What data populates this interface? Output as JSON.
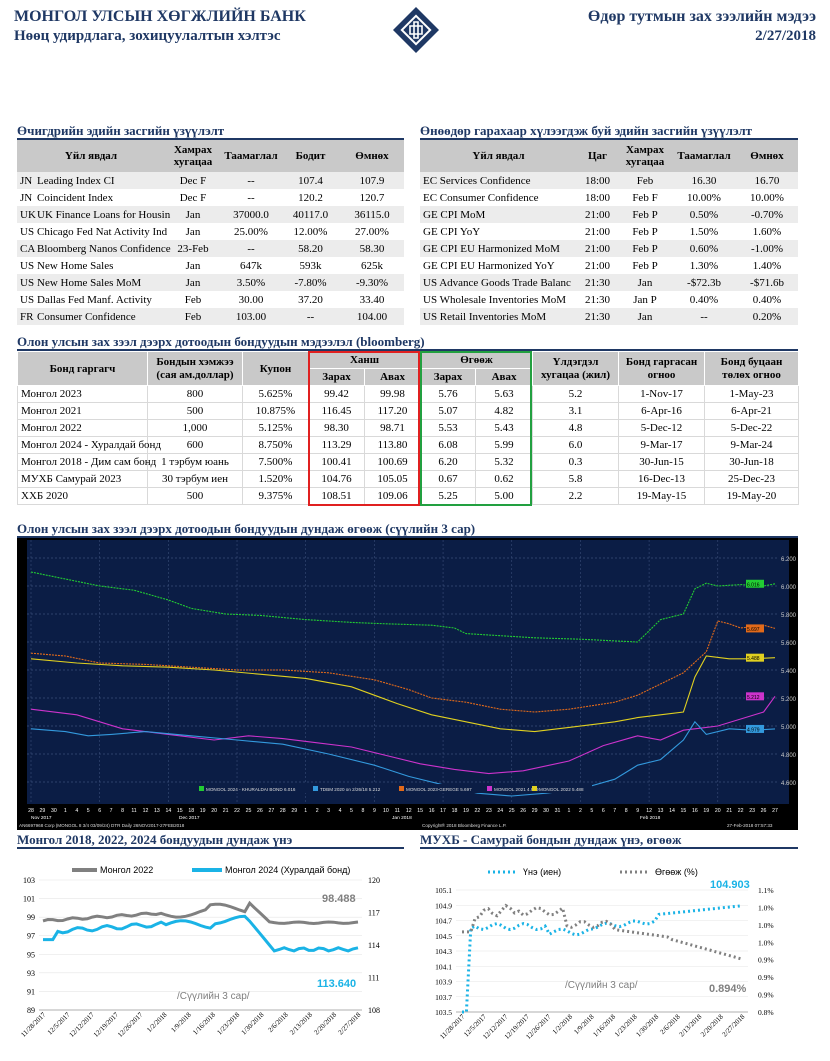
{
  "header": {
    "bank": "МОНГОЛ УЛСЫН ХӨГЖЛИЙН БАНК",
    "dept": "Нөөц удирдлага, зохицуулалтын хэлтэс",
    "report": "Өдөр тутмын зах зээлийн мэдээ",
    "date": "2/27/2018"
  },
  "yesterday": {
    "title": "Өчигдрийн эдийн засгийн үзүүлэлт",
    "cols": [
      "Үйл явдал",
      "Хамрах хугацаа",
      "Таамаглал",
      "Бодит",
      "Өмнөх"
    ],
    "rows": [
      [
        "JN",
        "Leading Index CI",
        "Dec F",
        "--",
        "107.4",
        "107.9"
      ],
      [
        "JN",
        "Coincident Index",
        "Dec F",
        "--",
        "120.2",
        "120.7"
      ],
      [
        "UK",
        "UK Finance Loans for Housin",
        "Jan",
        "37000.0",
        "40117.0",
        "36115.0"
      ],
      [
        "US",
        "Chicago Fed Nat Activity Ind",
        "Jan",
        "25.00%",
        "12.00%",
        "27.00%"
      ],
      [
        "CA",
        "Bloomberg Nanos Confidence",
        "23-Feb",
        "--",
        "58.20",
        "58.30"
      ],
      [
        "US",
        "New Home Sales",
        "Jan",
        "647k",
        "593k",
        "625k"
      ],
      [
        "US",
        "New Home Sales MoM",
        "Jan",
        "3.50%",
        "-7.80%",
        "-9.30%"
      ],
      [
        "US",
        "Dallas Fed Manf. Activity",
        "Feb",
        "30.00",
        "37.20",
        "33.40"
      ],
      [
        "FR",
        "Consumer Confidence",
        "Feb",
        "103.00",
        "--",
        "104.00"
      ]
    ]
  },
  "today": {
    "title": "Өнөөдөр гарахаар хүлээгдэж буй эдийн засгийн үзүүлэлт",
    "cols": [
      "Үйл явдал",
      "Цаг",
      "Хамрах хугацаа",
      "Таамаглал",
      "Өмнөх"
    ],
    "rows": [
      [
        "EC Services Confidence",
        "18:00",
        "Feb",
        "16.30",
        "16.70"
      ],
      [
        "EC Consumer Confidence",
        "18:00",
        "Feb F",
        "10.00%",
        "10.00%"
      ],
      [
        "GE CPI MoM",
        "21:00",
        "Feb P",
        "0.50%",
        "-0.70%"
      ],
      [
        "GE CPI YoY",
        "21:00",
        "Feb P",
        "1.50%",
        "1.60%"
      ],
      [
        "GE CPI EU Harmonized MoM",
        "21:00",
        "Feb P",
        "0.60%",
        "-1.00%"
      ],
      [
        "GE CPI EU Harmonized YoY",
        "21:00",
        "Feb P",
        "1.30%",
        "1.40%"
      ],
      [
        "US Advance Goods Trade Balanc",
        "21:30",
        "Jan",
        "-$72.3b",
        "-$71.6b"
      ],
      [
        "US Wholesale Inventories MoM",
        "21:30",
        "Jan P",
        "0.40%",
        "0.40%"
      ],
      [
        "US Retail Inventories MoM",
        "21:30",
        "Jan",
        "--",
        "0.20%"
      ]
    ]
  },
  "bonds": {
    "title": "Олон улсын зах зээл дээрх дотоодын бондуудын мэдээлэл (bloomberg)",
    "cols": [
      "Бонд гаргагч",
      "Бондын хэмжээ (сая ам.доллар)",
      "Купон",
      "Ханш",
      "Өгөөж",
      "Үлдэгдэл хугацаа (жил)",
      "Бонд гаргасан огноо",
      "Бонд буцаан төлөх огноо"
    ],
    "sub": [
      "Зарах",
      "Авах",
      "Зарах",
      "Авах"
    ],
    "rows": [
      [
        "Монгол 2023",
        "800",
        "5.625%",
        "99.42",
        "99.98",
        "5.76",
        "5.63",
        "5.2",
        "1-Nov-17",
        "1-May-23"
      ],
      [
        "Монгол 2021",
        "500",
        "10.875%",
        "116.45",
        "117.20",
        "5.07",
        "4.82",
        "3.1",
        "6-Apr-16",
        "6-Apr-21"
      ],
      [
        "Монгол 2022",
        "1,000",
        "5.125%",
        "98.30",
        "98.71",
        "5.53",
        "5.43",
        "4.8",
        "5-Dec-12",
        "5-Dec-22"
      ],
      [
        "Монгол 2024 - Хуралдай бонд",
        "600",
        "8.750%",
        "113.29",
        "113.80",
        "6.08",
        "5.99",
        "6.0",
        "9-Mar-17",
        "9-Mar-24"
      ],
      [
        "Монгол 2018 - Дим сам бонд",
        "1 тэрбум юань",
        "7.500%",
        "100.41",
        "100.69",
        "6.20",
        "5.32",
        "0.3",
        "30-Jun-15",
        "30-Jun-18"
      ],
      [
        "МУХБ Самурай 2023",
        "30 тэрбум иен",
        "1.520%",
        "104.76",
        "105.05",
        "0.67",
        "0.62",
        "5.8",
        "16-Dec-13",
        "25-Dec-23"
      ],
      [
        "ХХБ 2020",
        "500",
        "9.375%",
        "108.51",
        "109.06",
        "5.25",
        "5.00",
        "2.2",
        "19-May-15",
        "19-May-20"
      ]
    ]
  },
  "chart1": {
    "title": "Олон улсын зах зээл дээрх дотоодын бондуудын дундаж өгөөж (сүүлийн 3 сар)",
    "legend": [
      "MONGOL 2024 - KHURALDAI BOND 6.016",
      "TDBM 2020 on 2/26/18 5.212",
      "MONGOL 2023-GEREGE 5.697",
      "MONGOL 2021 4.979",
      "MONGOL 2022 5.488"
    ],
    "ylabels": [
      "6.200",
      "6.000",
      "5.800",
      "5.600",
      "5.400",
      "5.200",
      "5.000",
      "4.800",
      "4.600"
    ],
    "tags": [
      "6.016",
      "5.697",
      "5.488",
      "5.212",
      "4.979"
    ],
    "footer_left": "AN6697968 Corp (MONGOL 8 3/4 03/09/24) DTR  Daily 26NOV2017-27FEB2018",
    "footer_mid": "Copyright® 2018 Bloomberg Finance L.P.",
    "footer_right": "27-Feb-2018 07:57:33",
    "xlabels": [
      "28",
      "29",
      "30",
      "1",
      "4",
      "5",
      "6",
      "7",
      "8",
      "11",
      "12",
      "13",
      "14",
      "15",
      "18",
      "19",
      "20",
      "21",
      "22",
      "25",
      "26",
      "27",
      "28",
      "29",
      "1",
      "2",
      "3",
      "4",
      "5",
      "8",
      "9",
      "10",
      "11",
      "12",
      "15",
      "16",
      "17",
      "18",
      "19",
      "22",
      "23",
      "24",
      "25",
      "26",
      "29",
      "30",
      "31",
      "1",
      "2",
      "5",
      "6",
      "7",
      "8",
      "9",
      "12",
      "13",
      "14",
      "15",
      "16",
      "19",
      "20",
      "21",
      "22",
      "23",
      "26",
      "27"
    ],
    "month_labels": [
      "Nov 2017",
      "Dec 2017",
      "Jan 2018",
      "Feb 2018"
    ],
    "colors": [
      "#22cc33",
      "#e26a1a",
      "#e0d020",
      "#cc33cc",
      "#3399dd"
    ]
  },
  "chart2": {
    "title": "Монгол 2018, 2022, 2024 бондуудын дундаж үнэ",
    "legend": [
      "Монгол 2022",
      "Монгол 2024 (Хуралдай бонд)"
    ],
    "left_axis": [
      "103",
      "101",
      "99",
      "97",
      "95",
      "93",
      "91",
      "89"
    ],
    "right_axis": [
      "120",
      "117",
      "114",
      "111",
      "108"
    ],
    "label_a": "98.488",
    "label_b": "113.640",
    "note": "/Сүүлийн 3 сар/",
    "xlabels": [
      "11/28/2017",
      "12/5/2017",
      "12/12/2017",
      "12/19/2017",
      "12/26/2017",
      "1/2/2018",
      "1/9/2018",
      "1/16/2018",
      "1/23/2018",
      "1/30/2018",
      "2/6/2018",
      "2/13/2018",
      "2/20/2018",
      "2/27/2018"
    ]
  },
  "chart3": {
    "title": "МУХБ - Самурай бондын дундаж үнэ, өгөөж",
    "legend": [
      "Үнэ (иен)",
      "Өгөөж (%)"
    ],
    "left_axis": [
      "105.1",
      "104.9",
      "104.7",
      "104.5",
      "104.3",
      "104.1",
      "103.9",
      "103.7",
      "103.5"
    ],
    "right_axis": [
      "1.1%",
      "1.0%",
      "1.0%",
      "1.0%",
      "0.9%",
      "0.9%",
      "0.9%",
      "0.8%"
    ],
    "label_a": "104.903",
    "label_b": "0.894%",
    "note": "/Сүүлийн 3 сар/",
    "xlabels": [
      "11/28/2017",
      "12/5/2017",
      "12/12/2017",
      "12/19/2017",
      "12/26/2017",
      "1/2/2018",
      "1/9/2018",
      "1/16/2018",
      "1/23/2018",
      "1/30/2018",
      "2/6/2018",
      "2/13/2018",
      "2/20/2018",
      "2/27/2018"
    ]
  }
}
